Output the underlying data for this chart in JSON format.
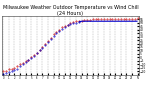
{
  "title": "Milwaukee Weather Outdoor Temperature vs Wind Chill (24 Hours)",
  "title_fontsize": 3.5,
  "background_color": "#ffffff",
  "plot_bg_color": "#ffffff",
  "grid_color": "#888888",
  "x_ticks": [
    0,
    1,
    2,
    3,
    4,
    5,
    6,
    7,
    8,
    9,
    10,
    11,
    12,
    13,
    14,
    15,
    16,
    17,
    18,
    19,
    20,
    21,
    22,
    23,
    24
  ],
  "x_tick_labels": [
    "0",
    "1",
    "2",
    "3",
    "4",
    "5",
    "6",
    "7",
    "8",
    "9",
    "10",
    "11",
    "12",
    "13",
    "14",
    "15",
    "16",
    "17",
    "18",
    "19",
    "20",
    "21",
    "22",
    "23",
    "N"
  ],
  "y_ticks": [
    -20,
    -15,
    -10,
    -5,
    0,
    5,
    10,
    15,
    20,
    25,
    30,
    35,
    40,
    45,
    50,
    55
  ],
  "ylim": [
    -25,
    60
  ],
  "xlim": [
    -0.3,
    24.3
  ],
  "temp_color": "#cc0000",
  "wind_color": "#0000cc",
  "temp_x": [
    0.0,
    0.5,
    1.0,
    1.5,
    2.0,
    2.5,
    3.0,
    3.5,
    4.0,
    4.5,
    5.0,
    5.5,
    6.0,
    6.5,
    7.0,
    7.5,
    8.0,
    8.5,
    9.0,
    9.5,
    10.0,
    10.5,
    11.0,
    11.5,
    12.0,
    12.5,
    13.0,
    13.5,
    14.0,
    14.5,
    15.0,
    15.5,
    16.0,
    16.5,
    17.0,
    17.5,
    18.0,
    18.5,
    19.0,
    19.5,
    20.0,
    20.5,
    21.0,
    21.5,
    22.0,
    22.5,
    23.0,
    23.5,
    24.0
  ],
  "temp_y": [
    -20,
    -19,
    -17,
    -16,
    -15,
    -13,
    -10,
    -8,
    -5,
    -3,
    0,
    3,
    7,
    11,
    15,
    20,
    24,
    28,
    33,
    37,
    40,
    43,
    45,
    47,
    49,
    51,
    52,
    53,
    53,
    54,
    54,
    54,
    55,
    55,
    55,
    55,
    55,
    55,
    55,
    55,
    55,
    55,
    55,
    55,
    55,
    55,
    55,
    55,
    56
  ],
  "wind_x": [
    0.0,
    0.5,
    1.0,
    1.5,
    2.0,
    2.5,
    3.0,
    3.5,
    4.0,
    4.5,
    5.0,
    5.5,
    6.0,
    6.5,
    7.0,
    7.5,
    8.0,
    8.5,
    9.0,
    9.5,
    10.0,
    10.5,
    11.0,
    11.5,
    12.0,
    12.5,
    13.0,
    13.5,
    14.0,
    14.5,
    15.0,
    15.5,
    16.0,
    16.5,
    17.0,
    17.5,
    18.0,
    18.5,
    19.0,
    19.5,
    20.0,
    20.5,
    21.0,
    21.5,
    22.0,
    22.5,
    23.0,
    23.5,
    24.0
  ],
  "wind_y": [
    -24,
    -23,
    -21,
    -20,
    -18,
    -16,
    -13,
    -10,
    -7,
    -4,
    -1,
    2,
    6,
    10,
    14,
    18,
    22,
    27,
    31,
    35,
    38,
    41,
    44,
    46,
    48,
    49,
    50,
    51,
    52,
    52,
    52,
    52,
    52,
    52,
    52,
    52,
    52,
    52,
    52,
    52,
    52,
    52,
    52,
    52,
    52,
    52,
    52,
    52,
    52
  ],
  "wind_line_start": 13.5,
  "wind_line_y": 52,
  "wind_line_end": 22.5
}
